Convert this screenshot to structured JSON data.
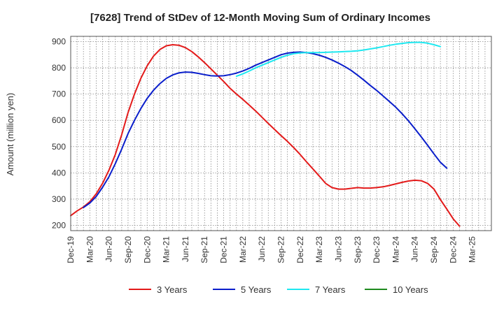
{
  "chart_data": {
    "type": "line",
    "title": "[7628]  Trend of StDev of 12-Month Moving Sum of Ordinary Incomes",
    "xlabel": "",
    "ylabel": "Amount (million yen)",
    "ylim": [
      180,
      920
    ],
    "yticks": [
      200,
      300,
      400,
      500,
      600,
      700,
      800,
      900
    ],
    "xlim": [
      0,
      66
    ],
    "xticks": [
      {
        "x": 0,
        "label": "Dec-19"
      },
      {
        "x": 3,
        "label": "Mar-20"
      },
      {
        "x": 6,
        "label": "Jun-20"
      },
      {
        "x": 9,
        "label": "Sep-20"
      },
      {
        "x": 12,
        "label": "Dec-20"
      },
      {
        "x": 15,
        "label": "Mar-21"
      },
      {
        "x": 18,
        "label": "Jun-21"
      },
      {
        "x": 21,
        "label": "Sep-21"
      },
      {
        "x": 24,
        "label": "Dec-21"
      },
      {
        "x": 27,
        "label": "Mar-22"
      },
      {
        "x": 30,
        "label": "Jun-22"
      },
      {
        "x": 33,
        "label": "Sep-22"
      },
      {
        "x": 36,
        "label": "Dec-22"
      },
      {
        "x": 39,
        "label": "Mar-23"
      },
      {
        "x": 42,
        "label": "Jun-23"
      },
      {
        "x": 45,
        "label": "Sep-23"
      },
      {
        "x": 48,
        "label": "Dec-23"
      },
      {
        "x": 51,
        "label": "Mar-24"
      },
      {
        "x": 54,
        "label": "Jun-24"
      },
      {
        "x": 57,
        "label": "Sep-24"
      },
      {
        "x": 60,
        "label": "Dec-24"
      },
      {
        "x": 63,
        "label": "Mar-25"
      }
    ],
    "grid": true,
    "legend_position": "bottom",
    "series": [
      {
        "name": "3 Years",
        "color": "#e31a1a",
        "points": [
          [
            0,
            237
          ],
          [
            1,
            255
          ],
          [
            2,
            270
          ],
          [
            3,
            290
          ],
          [
            4,
            320
          ],
          [
            5,
            360
          ],
          [
            6,
            410
          ],
          [
            7,
            470
          ],
          [
            8,
            545
          ],
          [
            9,
            630
          ],
          [
            10,
            700
          ],
          [
            11,
            760
          ],
          [
            12,
            808
          ],
          [
            13,
            845
          ],
          [
            14,
            870
          ],
          [
            15,
            884
          ],
          [
            16,
            888
          ],
          [
            17,
            886
          ],
          [
            18,
            877
          ],
          [
            19,
            862
          ],
          [
            20,
            842
          ],
          [
            21,
            820
          ],
          [
            22,
            796
          ],
          [
            23,
            772
          ],
          [
            24,
            748
          ],
          [
            25,
            722
          ],
          [
            26,
            700
          ],
          [
            27,
            680
          ],
          [
            28,
            658
          ],
          [
            29,
            636
          ],
          [
            30,
            612
          ],
          [
            31,
            588
          ],
          [
            32,
            565
          ],
          [
            33,
            542
          ],
          [
            34,
            520
          ],
          [
            35,
            496
          ],
          [
            36,
            470
          ],
          [
            37,
            442
          ],
          [
            38,
            415
          ],
          [
            39,
            388
          ],
          [
            40,
            360
          ],
          [
            41,
            344
          ],
          [
            42,
            338
          ],
          [
            43,
            338
          ],
          [
            44,
            341
          ],
          [
            45,
            344
          ],
          [
            46,
            342
          ],
          [
            47,
            342
          ],
          [
            48,
            344
          ],
          [
            49,
            347
          ],
          [
            50,
            352
          ],
          [
            51,
            358
          ],
          [
            52,
            364
          ],
          [
            53,
            369
          ],
          [
            54,
            372
          ],
          [
            55,
            370
          ],
          [
            56,
            360
          ],
          [
            57,
            338
          ],
          [
            58,
            298
          ],
          [
            59,
            262
          ],
          [
            60,
            225
          ],
          [
            61,
            197
          ]
        ]
      },
      {
        "name": "5 Years",
        "color": "#0a1ecb",
        "points": [
          [
            2,
            268
          ],
          [
            3,
            285
          ],
          [
            4,
            310
          ],
          [
            5,
            345
          ],
          [
            6,
            385
          ],
          [
            7,
            435
          ],
          [
            8,
            490
          ],
          [
            9,
            550
          ],
          [
            10,
            600
          ],
          [
            11,
            645
          ],
          [
            12,
            684
          ],
          [
            13,
            715
          ],
          [
            14,
            740
          ],
          [
            15,
            760
          ],
          [
            16,
            773
          ],
          [
            17,
            781
          ],
          [
            18,
            784
          ],
          [
            19,
            783
          ],
          [
            20,
            779
          ],
          [
            21,
            774
          ],
          [
            22,
            770
          ],
          [
            23,
            769
          ],
          [
            24,
            770
          ],
          [
            25,
            774
          ],
          [
            26,
            780
          ],
          [
            27,
            788
          ],
          [
            28,
            798
          ],
          [
            29,
            810
          ],
          [
            30,
            820
          ],
          [
            31,
            830
          ],
          [
            32,
            840
          ],
          [
            33,
            850
          ],
          [
            34,
            856
          ],
          [
            35,
            859
          ],
          [
            36,
            860
          ],
          [
            37,
            858
          ],
          [
            38,
            854
          ],
          [
            39,
            848
          ],
          [
            40,
            840
          ],
          [
            41,
            830
          ],
          [
            42,
            818
          ],
          [
            43,
            805
          ],
          [
            44,
            790
          ],
          [
            45,
            772
          ],
          [
            46,
            753
          ],
          [
            47,
            733
          ],
          [
            48,
            714
          ],
          [
            49,
            693
          ],
          [
            50,
            672
          ],
          [
            51,
            650
          ],
          [
            52,
            625
          ],
          [
            53,
            598
          ],
          [
            54,
            568
          ],
          [
            55,
            537
          ],
          [
            56,
            505
          ],
          [
            57,
            472
          ],
          [
            58,
            440
          ],
          [
            59,
            418
          ]
        ]
      },
      {
        "name": "7 Years",
        "color": "#1ee8f0",
        "points": [
          [
            26,
            768
          ],
          [
            27,
            777
          ],
          [
            28,
            788
          ],
          [
            29,
            800
          ],
          [
            30,
            810
          ],
          [
            31,
            820
          ],
          [
            32,
            830
          ],
          [
            33,
            840
          ],
          [
            34,
            848
          ],
          [
            35,
            854
          ],
          [
            36,
            857
          ],
          [
            37,
            858
          ],
          [
            38,
            858
          ],
          [
            39,
            858
          ],
          [
            40,
            859
          ],
          [
            41,
            860
          ],
          [
            42,
            861
          ],
          [
            43,
            862
          ],
          [
            44,
            863
          ],
          [
            45,
            865
          ],
          [
            46,
            868
          ],
          [
            47,
            872
          ],
          [
            48,
            876
          ],
          [
            49,
            881
          ],
          [
            50,
            886
          ],
          [
            51,
            890
          ],
          [
            52,
            893
          ],
          [
            53,
            896
          ],
          [
            54,
            897
          ],
          [
            55,
            897
          ],
          [
            56,
            894
          ],
          [
            57,
            888
          ],
          [
            58,
            881
          ]
        ]
      },
      {
        "name": "10 Years",
        "color": "#1e8a1e",
        "points": []
      }
    ]
  }
}
